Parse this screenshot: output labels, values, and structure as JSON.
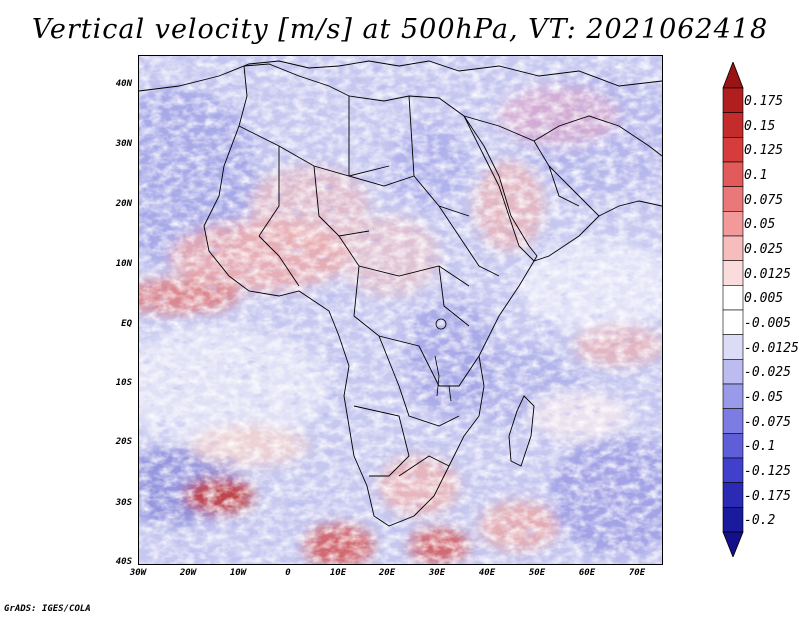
{
  "title": "Vertical velocity [m/s] at 500hPa, VT: 2021062418",
  "footer": "GrADS: IGES/COLA",
  "lat_labels": [
    "40N",
    "30N",
    "20N",
    "10N",
    "EQ",
    "10S",
    "20S",
    "30S",
    "40S"
  ],
  "lon_labels": [
    "30W",
    "20W",
    "10W",
    "0",
    "10E",
    "20E",
    "30E",
    "40E",
    "50E",
    "60E",
    "70E"
  ],
  "colorbar": {
    "labels": [
      "0.175",
      "0.15",
      "0.125",
      "0.1",
      "0.075",
      "0.05",
      "0.025",
      "0.0125",
      "0.005",
      "-0.005",
      "-0.0125",
      "-0.025",
      "-0.05",
      "-0.075",
      "-0.1",
      "-0.125",
      "-0.175",
      "-0.2"
    ],
    "colors": [
      "#b01e1e",
      "#c42c2c",
      "#d63c3c",
      "#e25a5a",
      "#ea7878",
      "#f29a9a",
      "#f7bcbc",
      "#fbdcdc",
      "#ffffff",
      "#ffffff",
      "#dcdcf7",
      "#bcbcf0",
      "#9a9aea",
      "#7c7ce2",
      "#5e5ed8",
      "#4040cc",
      "#2a2ab4",
      "#1a1a9c"
    ],
    "top_arrow_color": "#9a1414",
    "bottom_arrow_color": "#14108c"
  },
  "colors": {
    "background_field": "#c6c8f0",
    "border_lines": "#000000"
  }
}
